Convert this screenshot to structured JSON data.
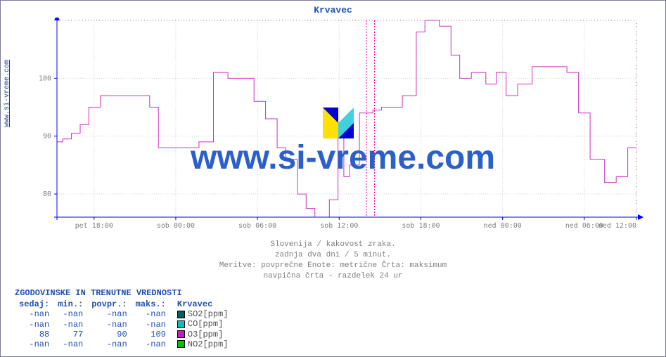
{
  "chart": {
    "title": "Krvavec",
    "ylabel_link": "www.si-vreme.com",
    "type": "step-line",
    "background_color": "#ffffff",
    "plot_border_color": "#0000ff",
    "grid_color": "#d0d0d0",
    "grid_dash": "1,2",
    "vline_color": "#ff00a0",
    "vline_dash": "2,2",
    "line_color": "#d030c0",
    "line_width": 1,
    "axis_font_size": 10,
    "tick_label_color": "#808080",
    "y": {
      "lim": [
        76,
        110
      ],
      "ticks": [
        80,
        90,
        100
      ]
    },
    "x": {
      "ticks": [
        {
          "v": 0.064,
          "label": "pet 18:00"
        },
        {
          "v": 0.205,
          "label": "sob 00:00"
        },
        {
          "v": 0.346,
          "label": "sob 06:00"
        },
        {
          "v": 0.487,
          "label": "sob 12:00"
        },
        {
          "v": 0.628,
          "label": "sob 18:00"
        },
        {
          "v": 0.769,
          "label": "ned 00:00"
        },
        {
          "v": 0.91,
          "label": "ned 06:00"
        },
        {
          "v": 1.0,
          "label": "ned 12:00",
          "edge": true
        }
      ]
    },
    "vlines": [
      0.534,
      0.548
    ],
    "points": [
      [
        0.0,
        89
      ],
      [
        0.01,
        89
      ],
      [
        0.01,
        89.5
      ],
      [
        0.025,
        89.5
      ],
      [
        0.025,
        90.5
      ],
      [
        0.04,
        90.5
      ],
      [
        0.04,
        92
      ],
      [
        0.055,
        92
      ],
      [
        0.055,
        95
      ],
      [
        0.075,
        95
      ],
      [
        0.075,
        97
      ],
      [
        0.095,
        97
      ],
      [
        0.095,
        97
      ],
      [
        0.16,
        97
      ],
      [
        0.16,
        95
      ],
      [
        0.175,
        95
      ],
      [
        0.175,
        88
      ],
      [
        0.205,
        88
      ],
      [
        0.205,
        88
      ],
      [
        0.245,
        88
      ],
      [
        0.245,
        89
      ],
      [
        0.27,
        89
      ],
      [
        0.27,
        101
      ],
      [
        0.295,
        101
      ],
      [
        0.295,
        100
      ],
      [
        0.34,
        100
      ],
      [
        0.34,
        96
      ],
      [
        0.36,
        96
      ],
      [
        0.36,
        93
      ],
      [
        0.38,
        93
      ],
      [
        0.38,
        88
      ],
      [
        0.395,
        88
      ],
      [
        0.395,
        86
      ],
      [
        0.415,
        86
      ],
      [
        0.415,
        80
      ],
      [
        0.43,
        80
      ],
      [
        0.43,
        77.5
      ],
      [
        0.445,
        77.5
      ],
      [
        0.445,
        76
      ],
      [
        0.47,
        76
      ],
      [
        0.47,
        79
      ],
      [
        0.485,
        79
      ],
      [
        0.485,
        90
      ],
      [
        0.495,
        90
      ],
      [
        0.495,
        83
      ],
      [
        0.505,
        83
      ],
      [
        0.505,
        85
      ],
      [
        0.522,
        85
      ],
      [
        0.522,
        94
      ],
      [
        0.545,
        94
      ],
      [
        0.545,
        94.5
      ],
      [
        0.56,
        94.5
      ],
      [
        0.56,
        95
      ],
      [
        0.596,
        95
      ],
      [
        0.596,
        97
      ],
      [
        0.62,
        97
      ],
      [
        0.62,
        108
      ],
      [
        0.635,
        108
      ],
      [
        0.635,
        110
      ],
      [
        0.66,
        110
      ],
      [
        0.66,
        109
      ],
      [
        0.68,
        109
      ],
      [
        0.68,
        104
      ],
      [
        0.695,
        104
      ],
      [
        0.695,
        100
      ],
      [
        0.715,
        100
      ],
      [
        0.715,
        101
      ],
      [
        0.74,
        101
      ],
      [
        0.74,
        99
      ],
      [
        0.758,
        99
      ],
      [
        0.758,
        101
      ],
      [
        0.775,
        101
      ],
      [
        0.775,
        97
      ],
      [
        0.795,
        97
      ],
      [
        0.795,
        99
      ],
      [
        0.82,
        99
      ],
      [
        0.82,
        102
      ],
      [
        0.88,
        102
      ],
      [
        0.88,
        101
      ],
      [
        0.9,
        101
      ],
      [
        0.9,
        94
      ],
      [
        0.92,
        94
      ],
      [
        0.92,
        86
      ],
      [
        0.945,
        86
      ],
      [
        0.945,
        82
      ],
      [
        0.965,
        82
      ],
      [
        0.965,
        83
      ],
      [
        0.985,
        83
      ],
      [
        0.985,
        88
      ],
      [
        1.0,
        88
      ]
    ],
    "watermark": "www.si-vreme.com",
    "watermark_font_size": 48,
    "watermark_color": "#2058c8"
  },
  "subtitles": {
    "l1": "Slovenija / kakovost zraka.",
    "l2": "zadnja dva dni / 5 minut.",
    "l3": "Meritve: povprečne  Enote: metrične  Črta: maksimum",
    "l4": "navpična črta - razdelek 24 ur"
  },
  "stats": {
    "title": "ZGODOVINSKE IN TRENUTNE VREDNOSTI",
    "columns": [
      "sedaj:",
      "min.:",
      "povpr.:",
      "maks.:"
    ],
    "legend_title": "Krvavec",
    "rows": [
      {
        "cells": [
          "-nan",
          "-nan",
          "-nan",
          "-nan"
        ],
        "swatch": "#006060",
        "label": "SO2[ppm]"
      },
      {
        "cells": [
          "-nan",
          "-nan",
          "-nan",
          "-nan"
        ],
        "swatch": "#00c0c0",
        "label": "CO[ppm]"
      },
      {
        "cells": [
          "88",
          "77",
          "90",
          "109"
        ],
        "swatch": "#c020c0",
        "label": "O3[ppm]"
      },
      {
        "cells": [
          "-nan",
          "-nan",
          "-nan",
          "-nan"
        ],
        "swatch": "#00c000",
        "label": "NO2[ppm]"
      }
    ]
  }
}
